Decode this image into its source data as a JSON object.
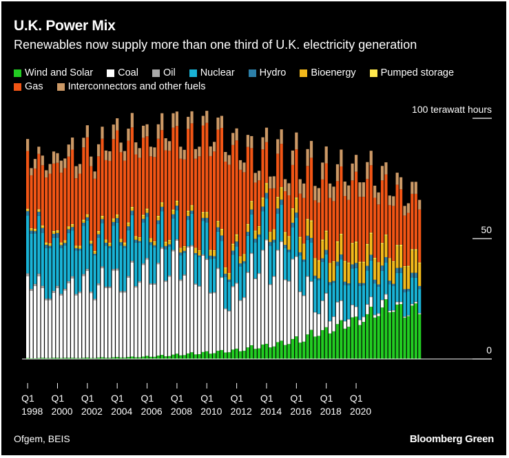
{
  "header": {
    "title": "U.K. Power Mix",
    "subtitle": "Renewables now supply more than one third of U.K. electricity generation"
  },
  "footer": {
    "source": "Ofgem, BEIS",
    "brand": "Bloomberg Green"
  },
  "chart_data": {
    "type": "bar",
    "stacked": true,
    "title": "U.K. Power Mix",
    "subtitle": "Renewables now supply more than one third of U.K. electricity generation",
    "unit_label": "100 terawatt hours",
    "ylim": [
      0,
      100
    ],
    "y_ticks": [
      {
        "value": 100,
        "label": "100 terawatt hours"
      },
      {
        "value": 50,
        "label": "50"
      },
      {
        "value": 0,
        "label": "0"
      }
    ],
    "x_ticks": [
      {
        "label_top": "Q1",
        "label_bottom": "1998"
      },
      {
        "label_top": "Q1",
        "label_bottom": "2000"
      },
      {
        "label_top": "Q1",
        "label_bottom": "2002"
      },
      {
        "label_top": "Q1",
        "label_bottom": "2004"
      },
      {
        "label_top": "Q1",
        "label_bottom": "2006"
      },
      {
        "label_top": "Q1",
        "label_bottom": "2008"
      },
      {
        "label_top": "Q1",
        "label_bottom": "2010"
      },
      {
        "label_top": "Q1",
        "label_bottom": "2012"
      },
      {
        "label_top": "Q1",
        "label_bottom": "2014"
      },
      {
        "label_top": "Q1",
        "label_bottom": "2016"
      },
      {
        "label_top": "Q1",
        "label_bottom": "2018"
      },
      {
        "label_top": "Q1",
        "label_bottom": "2020"
      }
    ],
    "legend_position": "top",
    "grid": false,
    "series": [
      {
        "name": "Wind and Solar",
        "color": "#22cc22",
        "values": [
          0.4,
          0.3,
          0.3,
          0.4,
          0.5,
          0.4,
          0.4,
          0.5,
          0.5,
          0.4,
          0.5,
          0.5,
          0.5,
          0.4,
          0.4,
          0.5,
          0.6,
          0.4,
          0.4,
          0.6,
          0.7,
          0.5,
          0.5,
          0.7,
          0.8,
          0.6,
          0.6,
          0.8,
          1,
          0.7,
          0.7,
          1,
          1.3,
          0.9,
          0.9,
          1.4,
          1.7,
          1.1,
          1.2,
          1.8,
          2.2,
          1.5,
          1.6,
          2.3,
          2.8,
          1.9,
          2,
          2.9,
          3.2,
          2.2,
          2.4,
          3.4,
          3.7,
          2.7,
          2.8,
          3.9,
          4.3,
          3.2,
          3.4,
          4.8,
          5.7,
          4.2,
          4.4,
          6,
          6.3,
          4.8,
          5.2,
          7,
          7.6,
          5.8,
          6.2,
          8.3,
          9.4,
          6.8,
          7.2,
          10.2,
          12.1,
          9.3,
          9.6,
          12,
          13.2,
          10.6,
          11.5,
          14.5,
          16.1,
          12.6,
          13.4,
          17.3,
          17.6,
          14.1,
          15.4,
          18.6,
          21.7,
          17.2,
          17.8,
          21.4,
          24.8,
          19.4,
          19.6,
          22.6,
          22.8,
          17.2,
          17.8,
          22.2,
          23.1,
          18.6
        ]
      },
      {
        "name": "Coal",
        "color": "#ffffff",
        "values": [
          34,
          28,
          30,
          34,
          29,
          24,
          24,
          27,
          29,
          26,
          28,
          31,
          33,
          26,
          27,
          34,
          36,
          27,
          24,
          30,
          37,
          29,
          29,
          36,
          36,
          27,
          27,
          33,
          39,
          29,
          31,
          38,
          40,
          30,
          30,
          38,
          44,
          31,
          33,
          43,
          47,
          31,
          33,
          44,
          44,
          29,
          28,
          40,
          38,
          25,
          25,
          34,
          30,
          18,
          17,
          26,
          27,
          21,
          22,
          31,
          38,
          29,
          31,
          39,
          43,
          26,
          29,
          38,
          41,
          27,
          26,
          33,
          33,
          21,
          19,
          24,
          20,
          10,
          9,
          12,
          14,
          5,
          6,
          9,
          8,
          3,
          3,
          5,
          4,
          2,
          2,
          4,
          4,
          1,
          1,
          3,
          2,
          0.5,
          0.5,
          1,
          0.8,
          0.3,
          0.2,
          0.5,
          0.5,
          0.3
        ]
      },
      {
        "name": "Oil",
        "color": "#aaaaaa",
        "values": [
          1.2,
          0.8,
          0.9,
          1.1,
          0.9,
          0.7,
          0.7,
          0.8,
          0.9,
          0.7,
          0.7,
          0.8,
          0.9,
          0.6,
          0.6,
          0.8,
          0.9,
          0.6,
          0.6,
          0.8,
          0.8,
          0.6,
          0.6,
          0.7,
          0.8,
          0.6,
          0.6,
          0.7,
          0.8,
          0.6,
          0.6,
          0.7,
          0.7,
          0.5,
          0.5,
          0.6,
          0.7,
          0.5,
          0.5,
          0.6,
          0.6,
          0.5,
          0.5,
          0.6,
          0.5,
          0.4,
          0.4,
          0.5,
          0.5,
          0.4,
          0.4,
          0.5,
          0.4,
          0.3,
          0.3,
          0.4,
          0.4,
          0.3,
          0.3,
          0.4,
          0.4,
          0.3,
          0.3,
          0.4,
          0.4,
          0.3,
          0.3,
          0.4,
          0.4,
          0.3,
          0.3,
          0.4,
          0.3,
          0.3,
          0.3,
          0.3,
          0.3,
          0.2,
          0.2,
          0.3,
          0.3,
          0.2,
          0.2,
          0.3,
          0.3,
          0.2,
          0.2,
          0.3,
          0.2,
          0.2,
          0.2,
          0.2,
          0.2,
          0.2,
          0.2,
          0.2,
          0.2,
          0.2,
          0.2,
          0.2,
          0.2,
          0.2,
          0.2,
          0.2,
          0.2,
          0.2
        ]
      },
      {
        "name": "Nuclear",
        "color": "#19b3d6",
        "values": [
          24,
          23,
          21,
          24,
          22,
          21,
          21,
          22,
          20,
          19,
          18,
          20,
          19,
          18,
          17,
          20,
          20,
          19,
          18,
          19,
          18,
          17,
          16,
          18,
          19,
          19,
          18,
          19,
          19,
          18,
          16,
          17,
          17,
          16,
          15,
          16,
          15,
          13,
          12,
          13,
          12,
          10,
          9,
          11,
          13,
          12,
          12,
          14,
          15,
          14,
          14,
          15,
          15,
          13,
          12,
          13,
          15,
          14,
          14,
          15,
          16,
          15,
          15,
          16,
          17,
          16,
          14,
          15,
          15,
          13,
          12,
          13,
          16,
          15,
          14,
          15,
          16,
          14,
          14,
          16,
          16,
          15,
          14,
          15,
          17,
          15,
          14,
          15,
          16,
          14,
          13,
          14,
          15,
          13,
          11,
          12,
          13,
          11,
          10,
          12,
          12,
          10,
          10,
          11,
          10,
          10
        ]
      },
      {
        "name": "Hydro",
        "color": "#2c7fa8",
        "values": [
          1.8,
          1.2,
          0.9,
          1.6,
          2,
          1.3,
          0.9,
          1.7,
          1.9,
          1.2,
          1,
          1.6,
          1.4,
          1,
          0.8,
          1.3,
          1.3,
          0.9,
          0.7,
          1.4,
          1.6,
          1.2,
          0.8,
          1.5,
          1.9,
          1.3,
          0.8,
          1.6,
          1.8,
          1.2,
          0.7,
          1.5,
          1.7,
          1.1,
          0.8,
          1.6,
          1.8,
          1.3,
          0.9,
          1.7,
          1.9,
          1.2,
          0.8,
          1.5,
          1.3,
          0.7,
          0.6,
          1.2,
          1.9,
          1.3,
          0.9,
          1.8,
          2.2,
          1.4,
          0.9,
          1.7,
          2.1,
          1.2,
          0.9,
          1.6,
          2,
          1.4,
          1,
          1.9,
          2.3,
          1.5,
          1,
          2.1,
          2.2,
          1.3,
          0.9,
          1.9,
          2.1,
          1.2,
          0.8,
          1.7,
          1.9,
          1.1,
          0.7,
          1.5,
          1.8,
          1.1,
          0.7,
          1.6,
          2,
          1.3,
          0.8,
          1.7,
          2.1,
          1.2,
          0.9,
          1.9,
          2.4,
          1.5,
          1,
          2.2,
          2.3,
          1.4,
          0.9,
          2,
          2.1,
          1.3,
          0.9,
          1.9,
          2,
          1.2
        ]
      },
      {
        "name": "Bioenergy",
        "color": "#f2b91c",
        "values": [
          0.5,
          0.6,
          0.6,
          0.6,
          0.6,
          0.6,
          0.6,
          0.7,
          0.7,
          0.7,
          0.7,
          0.7,
          0.7,
          0.7,
          0.8,
          0.8,
          0.8,
          0.8,
          0.8,
          0.9,
          0.9,
          0.9,
          1,
          1,
          1,
          1,
          1,
          1.1,
          1.1,
          1.1,
          1.2,
          1.2,
          1.3,
          1.3,
          1.3,
          1.4,
          1.4,
          1.4,
          1.5,
          1.5,
          1.6,
          1.6,
          1.6,
          1.7,
          1.8,
          1.8,
          1.8,
          1.9,
          2,
          2,
          2.1,
          2.1,
          2.2,
          2.2,
          2.3,
          2.4,
          2.5,
          2.5,
          2.6,
          2.8,
          3,
          3,
          3.1,
          3.3,
          3.6,
          3.8,
          4,
          4.3,
          4.7,
          4.9,
          5.2,
          5.5,
          5.8,
          6,
          6.2,
          6.5,
          6.8,
          6.9,
          7.1,
          7.3,
          7.5,
          7.6,
          7.8,
          8,
          8.1,
          8.2,
          8.3,
          8.4,
          8.4,
          8.5,
          8.5,
          8.6,
          8.7,
          8.7,
          8.8,
          8.9,
          8.9,
          9,
          9,
          9.1,
          9.1,
          9.2,
          9.2,
          9.3,
          9.3,
          9.4
        ]
      },
      {
        "name": "Pumped storage",
        "color": "#ffe84d",
        "values": [
          0.5,
          0.4,
          0.4,
          0.5,
          0.5,
          0.4,
          0.4,
          0.5,
          0.5,
          0.4,
          0.4,
          0.5,
          0.5,
          0.4,
          0.4,
          0.5,
          0.5,
          0.4,
          0.4,
          0.5,
          0.5,
          0.4,
          0.4,
          0.5,
          0.5,
          0.4,
          0.4,
          0.5,
          0.5,
          0.4,
          0.4,
          0.5,
          0.5,
          0.4,
          0.4,
          0.5,
          0.5,
          0.4,
          0.4,
          0.5,
          0.5,
          0.4,
          0.4,
          0.5,
          0.5,
          0.4,
          0.4,
          0.5,
          0.5,
          0.4,
          0.4,
          0.5,
          0.5,
          0.4,
          0.4,
          0.5,
          0.5,
          0.4,
          0.4,
          0.5,
          0.5,
          0.4,
          0.4,
          0.5,
          0.5,
          0.4,
          0.4,
          0.5,
          0.5,
          0.4,
          0.4,
          0.5,
          0.5,
          0.4,
          0.4,
          0.5,
          0.5,
          0.4,
          0.4,
          0.5,
          0.5,
          0.4,
          0.4,
          0.5,
          0.5,
          0.4,
          0.4,
          0.5,
          0.5,
          0.4,
          0.4,
          0.5,
          0.5,
          0.4,
          0.4,
          0.5,
          0.5,
          0.4,
          0.4,
          0.5,
          0.5,
          0.4,
          0.4,
          0.5,
          0.5,
          0.4
        ]
      },
      {
        "name": "Gas",
        "color": "#f25515",
        "values": [
          24,
          22,
          25,
          23,
          25,
          27,
          29,
          28,
          28,
          29,
          30,
          29,
          31,
          28,
          30,
          30,
          32,
          31,
          30,
          31,
          32,
          33,
          34,
          33,
          35,
          36,
          34,
          34,
          33,
          34,
          33,
          32,
          30,
          34,
          35,
          32,
          30,
          38,
          37,
          34,
          31,
          37,
          36,
          34,
          34,
          37,
          39,
          36,
          37,
          39,
          41,
          38,
          42,
          44,
          45,
          41,
          39,
          36,
          34,
          32,
          22,
          20,
          19,
          20,
          17,
          18,
          17,
          18,
          18,
          17,
          17,
          18,
          20,
          18,
          19,
          22,
          26,
          24,
          24,
          25,
          28,
          27,
          25,
          25,
          28,
          27,
          26,
          26,
          29,
          27,
          27,
          27,
          28,
          25,
          24,
          26,
          25,
          22,
          23,
          25,
          23,
          21,
          22,
          23,
          23,
          22
        ]
      },
      {
        "name": "Interconnectors and other fuels",
        "color": "#cc9966",
        "values": [
          5,
          3,
          4,
          3,
          4,
          3,
          4,
          5,
          4,
          5,
          4,
          5,
          5,
          5,
          4,
          4,
          5,
          4,
          3,
          5,
          5,
          4,
          4,
          6,
          5,
          4,
          4,
          5,
          6,
          5,
          4,
          5,
          5,
          4,
          4,
          6,
          7,
          5,
          4,
          6,
          6,
          5,
          4,
          5,
          5,
          4,
          4,
          4,
          5,
          4,
          4,
          5,
          5,
          4,
          4,
          5,
          5,
          4,
          4,
          5,
          5,
          4,
          4,
          5,
          6,
          5,
          5,
          6,
          6,
          5,
          5,
          6,
          7,
          6,
          6,
          7,
          7,
          6,
          6,
          7,
          7,
          6,
          6,
          7,
          7,
          6,
          6,
          7,
          7,
          6,
          6,
          7,
          6,
          5,
          5,
          6,
          5,
          4,
          4,
          5,
          5,
          4,
          4,
          5,
          5,
          4
        ]
      }
    ]
  }
}
